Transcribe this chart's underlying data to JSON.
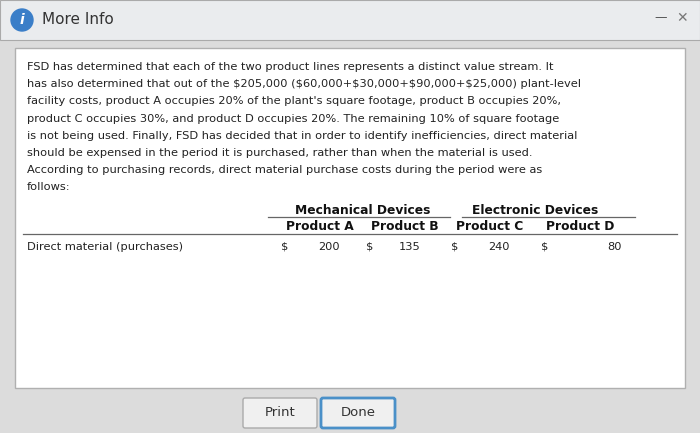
{
  "title": "More Info",
  "bg_color": "#dcdcdc",
  "title_bar_color": "#eaecee",
  "content_box_bg": "#ffffff",
  "content_box_edge": "#b0b0b0",
  "body_text_lines": [
    "FSD has determined that each of the two product lines represents a distinct value stream. It",
    "has also determined that out of the $205,000 ($60,000+$30,000+$90,000+$25,000) plant-level",
    "facility costs, product A occupies 20% of the plant's square footage, product B occupies 20%,",
    "product C occupies 30%, and product D occupies 20%. The remaining 10% of square footage",
    "is not being used. Finally, FSD has decided that in order to identify inefficiencies, direct material",
    "should be expensed in the period it is purchased, rather than when the material is used.",
    "According to purchasing records, direct material purchase costs during the period were as",
    "follows:"
  ],
  "group1_label": "Mechanical Devices",
  "group2_label": "Electronic Devices",
  "col_labels": [
    "Product A",
    "Product B",
    "Product C",
    "Product D"
  ],
  "row_label": "Direct material (purchases)",
  "values": [
    "200",
    "135",
    "240",
    "80"
  ],
  "print_btn": "Print",
  "done_btn": "Done",
  "icon_color": "#3a7ec8",
  "info_icon": "i",
  "title_color": "#333333",
  "body_text_color": "#222222",
  "table_header_color": "#111111",
  "button_border_done": "#4a90c8",
  "button_border_print": "#aaaaaa",
  "minimize_color": "#555555",
  "close_color": "#777777"
}
